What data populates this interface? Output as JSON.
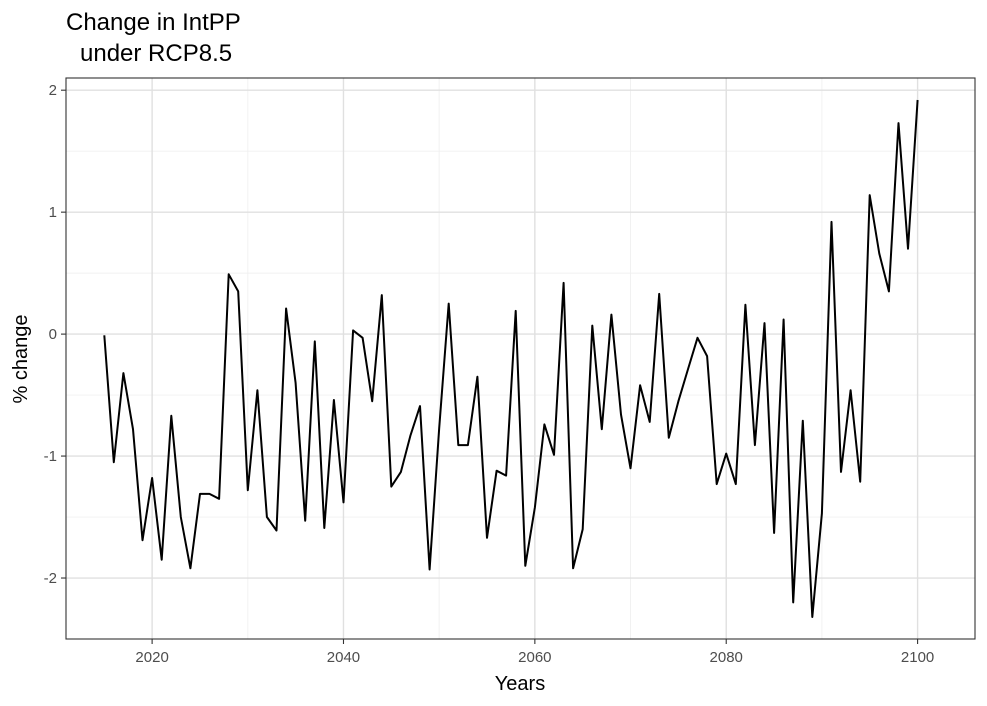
{
  "chart_data": {
    "type": "line",
    "title_lines": [
      "Change in IntPP",
      "under RCP8.5"
    ],
    "xlabel": "Years",
    "ylabel": "% change",
    "xlim": [
      2011,
      2106
    ],
    "ylim": [
      -2.5,
      2.1
    ],
    "x_ticks": [
      2020,
      2040,
      2060,
      2080,
      2100
    ],
    "y_ticks": [
      -2,
      -1,
      0,
      1,
      2
    ],
    "y_tick_labels": [
      "-2",
      "-1",
      "0",
      "1",
      "2"
    ],
    "x_minor_ticks": [
      2030,
      2050,
      2070,
      2090
    ],
    "y_minor_ticks": [
      -1.5,
      -0.5,
      0.5,
      1.5
    ],
    "grid": true,
    "legend": "none",
    "line_color": "#000000",
    "series": [
      {
        "x": [
          2015,
          2016,
          2017,
          2018,
          2019,
          2020,
          2021,
          2022,
          2023,
          2024,
          2025,
          2026,
          2027,
          2028,
          2029,
          2030,
          2031,
          2032,
          2033,
          2034,
          2035,
          2036,
          2037,
          2038,
          2039,
          2040,
          2041,
          2042,
          2043,
          2044,
          2045,
          2046,
          2047,
          2048,
          2049,
          2050,
          2051,
          2052,
          2053,
          2054,
          2055,
          2056,
          2057,
          2058,
          2059,
          2060,
          2061,
          2062,
          2063,
          2064,
          2065,
          2066,
          2067,
          2068,
          2069,
          2070,
          2071,
          2072,
          2073,
          2074,
          2075,
          2076,
          2077,
          2078,
          2079,
          2080,
          2081,
          2082,
          2083,
          2084,
          2085,
          2086,
          2087,
          2088,
          2089,
          2090,
          2091,
          2092,
          2093,
          2094,
          2095,
          2096,
          2097,
          2098,
          2099,
          2100
        ],
        "y": [
          -0.01,
          -1.05,
          -0.32,
          -0.78,
          -1.69,
          -1.18,
          -1.85,
          -0.67,
          -1.5,
          -1.92,
          -1.31,
          -1.31,
          -1.35,
          0.49,
          0.35,
          -1.28,
          -0.46,
          -1.5,
          -1.61,
          0.21,
          -0.4,
          -1.53,
          -0.06,
          -1.59,
          -0.54,
          -1.38,
          0.03,
          -0.03,
          -0.55,
          0.32,
          -1.25,
          -1.13,
          -0.83,
          -0.59,
          -1.93,
          -0.77,
          0.25,
          -0.91,
          -0.91,
          -0.35,
          -1.67,
          -1.12,
          -1.16,
          0.19,
          -1.9,
          -1.42,
          -0.74,
          -0.99,
          0.42,
          -1.92,
          -1.6,
          0.07,
          -0.78,
          0.16,
          -0.66,
          -1.1,
          -0.42,
          -0.72,
          0.33,
          -0.85,
          -0.55,
          -0.29,
          -0.03,
          -0.18,
          -1.23,
          -0.98,
          -1.23,
          0.24,
          -0.91,
          0.09,
          -1.63,
          0.12,
          -2.2,
          -0.71,
          -2.32,
          -1.47,
          0.92,
          -1.13,
          -0.46,
          -1.21,
          1.14,
          0.66,
          0.35,
          1.73,
          0.7,
          1.92
        ]
      }
    ]
  }
}
